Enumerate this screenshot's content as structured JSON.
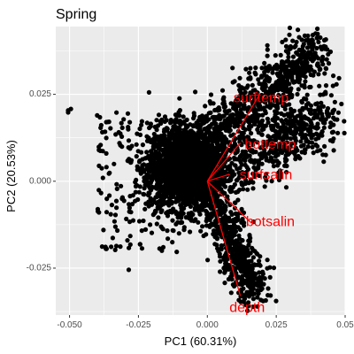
{
  "chart_data": {
    "type": "scatter",
    "title": "Spring",
    "xlabel": "PC1 (60.31%)",
    "ylabel": "PC2 (20.53%)",
    "xlim": [
      -0.055,
      0.05
    ],
    "ylim": [
      -0.0385,
      0.0445
    ],
    "x_ticks": [
      {
        "value": -0.05,
        "label": "-0.050"
      },
      {
        "value": -0.025,
        "label": "-0.025"
      },
      {
        "value": 0.0,
        "label": "0.000"
      },
      {
        "value": 0.025,
        "label": "0.025"
      },
      {
        "value": 0.05,
        "label": "0.05"
      }
    ],
    "y_ticks": [
      {
        "value": -0.025,
        "label": "-0.025"
      },
      {
        "value": 0.0,
        "label": "0.000"
      },
      {
        "value": 0.025,
        "label": "0.025"
      }
    ],
    "grid": true,
    "background": "#ebebeb",
    "point_color": "#000000",
    "point_cloud": {
      "core": {
        "center": [
          -0.007,
          0.004
        ],
        "spread": [
          0.013,
          0.011
        ],
        "count": 2600
      },
      "arm_top_right": {
        "from": [
          0.0,
          0.013
        ],
        "to": [
          0.04,
          0.038
        ],
        "count": 650
      },
      "arm_right": {
        "from": [
          0.01,
          0.005
        ],
        "to": [
          0.045,
          0.02
        ],
        "count": 500
      },
      "arm_lower": {
        "from": [
          0.003,
          -0.006
        ],
        "to": [
          0.017,
          -0.033
        ],
        "count": 520
      },
      "scatter_left": {
        "x_range": [
          -0.04,
          -0.012
        ],
        "y_range": [
          -0.02,
          0.02
        ],
        "count": 140
      }
    },
    "outliers": [
      [
        -0.0505,
        0.0198
      ],
      [
        -0.0495,
        0.0208
      ],
      [
        -0.0505,
        0.0204
      ],
      [
        -0.029,
        -0.017
      ],
      [
        -0.0285,
        -0.0255
      ],
      [
        -0.016,
        -0.019
      ]
    ],
    "loadings": [
      {
        "name": "surftemp",
        "x": 0.019,
        "y": 0.025
      },
      {
        "name": "bottemp",
        "x": 0.012,
        "y": 0.011
      },
      {
        "name": "surfsalin",
        "x": 0.008,
        "y": 0.002
      },
      {
        "name": "botsalin",
        "x": 0.016,
        "y": -0.012
      },
      {
        "name": "depth",
        "x": 0.012,
        "y": -0.033
      }
    ],
    "loading_label_positions": [
      {
        "name": "surftemp",
        "x": 0.0095,
        "y": 0.0238
      },
      {
        "name": "bottemp",
        "x": 0.0135,
        "y": 0.0105
      },
      {
        "name": "surfsalin",
        "x": 0.0117,
        "y": 0.0017
      },
      {
        "name": "botsalin",
        "x": 0.014,
        "y": -0.0118
      },
      {
        "name": "depth",
        "x": 0.008,
        "y": -0.0365
      }
    ],
    "loading_color": "#ff0000"
  }
}
